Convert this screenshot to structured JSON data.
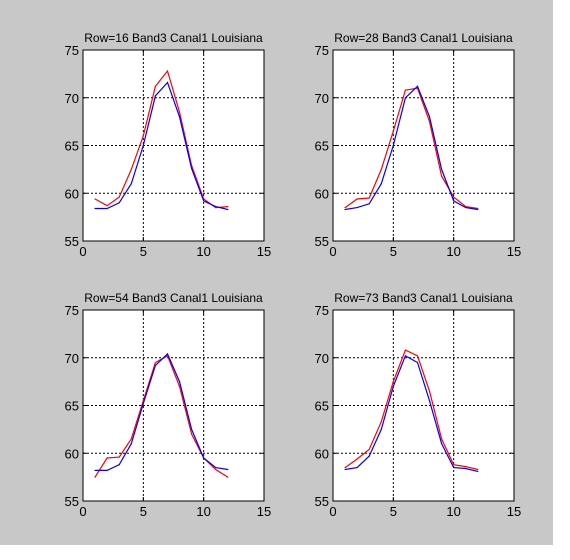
{
  "figure": {
    "background": "#c8c8c8",
    "axes_background": "#ffffff"
  },
  "chart_data": [
    {
      "type": "line",
      "title": "Row=16 Band3 Canal1 Louisiana",
      "xlim": [
        0,
        15
      ],
      "ylim": [
        55,
        75
      ],
      "xticks": [
        0,
        5,
        10,
        15
      ],
      "yticks": [
        55,
        60,
        65,
        70,
        75
      ],
      "grid": "dashed",
      "series": [
        {
          "color": "#ff0000",
          "x": [
            1,
            2,
            3,
            4,
            5,
            6,
            7,
            8,
            9,
            10,
            11,
            12
          ],
          "values": [
            59.4,
            58.7,
            59.6,
            62.5,
            66.0,
            71.2,
            72.8,
            68.5,
            62.9,
            59.4,
            58.5,
            58.6
          ]
        },
        {
          "color": "#0000ff",
          "x": [
            1,
            2,
            3,
            4,
            5,
            6,
            7,
            8,
            9,
            10,
            11,
            12
          ],
          "values": [
            58.4,
            58.4,
            59.0,
            61.0,
            65.0,
            70.2,
            71.6,
            68.0,
            62.6,
            59.2,
            58.6,
            58.3
          ]
        }
      ]
    },
    {
      "type": "line",
      "title": "Row=28 Band3 Canal1 Louisiana",
      "xlim": [
        0,
        15
      ],
      "ylim": [
        55,
        75
      ],
      "xticks": [
        0,
        5,
        10,
        15
      ],
      "yticks": [
        55,
        60,
        65,
        70,
        75
      ],
      "grid": "dashed",
      "series": [
        {
          "color": "#ff0000",
          "x": [
            1,
            2,
            3,
            4,
            5,
            6,
            7,
            8,
            9,
            10,
            11,
            12
          ],
          "values": [
            58.5,
            59.4,
            59.5,
            62.5,
            66.5,
            70.8,
            71.0,
            67.5,
            61.8,
            59.6,
            58.6,
            58.4
          ]
        },
        {
          "color": "#0000ff",
          "x": [
            1,
            2,
            3,
            4,
            5,
            6,
            7,
            8,
            9,
            10,
            11,
            12
          ],
          "values": [
            58.3,
            58.5,
            58.9,
            61.0,
            65.0,
            70.0,
            71.2,
            68.0,
            62.5,
            59.2,
            58.5,
            58.3
          ]
        }
      ]
    },
    {
      "type": "line",
      "title": "Row=54 Band3 Canal1 Louisiana",
      "xlim": [
        0,
        15
      ],
      "ylim": [
        55,
        75
      ],
      "xticks": [
        0,
        5,
        10,
        15
      ],
      "yticks": [
        55,
        60,
        65,
        70,
        75
      ],
      "grid": "dashed",
      "series": [
        {
          "color": "#ff0000",
          "x": [
            1,
            2,
            3,
            4,
            5,
            6,
            7,
            8,
            9,
            10,
            11,
            12
          ],
          "values": [
            57.5,
            59.5,
            59.6,
            61.5,
            65.5,
            69.5,
            70.2,
            67.0,
            62.0,
            59.5,
            58.3,
            57.5
          ]
        },
        {
          "color": "#0000ff",
          "x": [
            1,
            2,
            3,
            4,
            5,
            6,
            7,
            8,
            9,
            10,
            11,
            12
          ],
          "values": [
            58.2,
            58.2,
            58.8,
            61.0,
            65.2,
            69.2,
            70.4,
            67.5,
            62.5,
            59.5,
            58.5,
            58.3
          ]
        }
      ]
    },
    {
      "type": "line",
      "title": "Row=73 Band3 Canal1 Louisiana",
      "xlim": [
        0,
        15
      ],
      "ylim": [
        55,
        75
      ],
      "xticks": [
        0,
        5,
        10,
        15
      ],
      "yticks": [
        55,
        60,
        65,
        70,
        75
      ],
      "grid": "dashed",
      "series": [
        {
          "color": "#ff0000",
          "x": [
            1,
            2,
            3,
            4,
            5,
            6,
            7,
            8,
            9,
            10,
            11,
            12
          ],
          "values": [
            58.5,
            59.4,
            60.4,
            63.3,
            67.5,
            70.8,
            70.2,
            66.5,
            61.5,
            58.8,
            58.6,
            58.3
          ]
        },
        {
          "color": "#0000ff",
          "x": [
            1,
            2,
            3,
            4,
            5,
            6,
            7,
            8,
            9,
            10,
            11,
            12
          ],
          "values": [
            58.3,
            58.5,
            59.7,
            62.5,
            67.0,
            70.2,
            69.5,
            65.5,
            61.0,
            58.5,
            58.4,
            58.1
          ]
        }
      ]
    }
  ]
}
